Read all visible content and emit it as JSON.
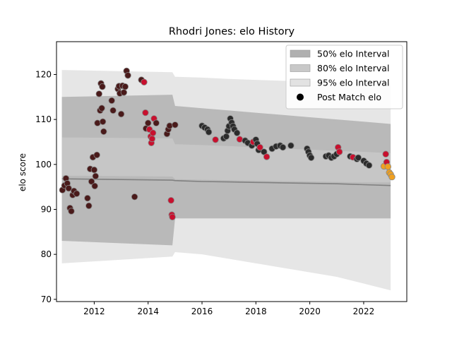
{
  "chart_data": {
    "type": "scatter",
    "title": "Rhodri Jones: elo History",
    "xlabel": "",
    "ylabel": "elo score",
    "xlim": [
      2010.6,
      2023.6
    ],
    "ylim": [
      69.5,
      127.3
    ],
    "xticks": [
      2012,
      2014,
      2016,
      2018,
      2020,
      2022
    ],
    "yticks": [
      70,
      80,
      90,
      100,
      110,
      120
    ],
    "grid": false,
    "legend_position": "top-right",
    "legend": [
      {
        "label": "50% elo Interval",
        "kind": "band",
        "color": "#b0b0b0"
      },
      {
        "label": "80% elo Interval",
        "kind": "band",
        "color": "#c8c8c8"
      },
      {
        "label": "95% elo Interval",
        "kind": "band",
        "color": "#e2e2e2"
      },
      {
        "label": "Post Match elo",
        "kind": "marker",
        "color": "#000000"
      }
    ],
    "colors": {
      "band50": "#b0b0b0",
      "band80": "#c8c8c8",
      "band95": "#e2e2e2",
      "median_line": "#808080",
      "marker_dark": "#2b2b2b",
      "marker_red": "#c8102e",
      "marker_maroon": "#4a1a1a",
      "marker_orange": "#f0a020"
    },
    "intervals": {
      "x": [
        2010.8,
        2014.9,
        2015.0,
        2016.0,
        2017.0,
        2018.0,
        2019.0,
        2020.0,
        2021.0,
        2022.0,
        2023.0
      ],
      "median": [
        96.8,
        96.5,
        96.4,
        96.2,
        96.1,
        96.0,
        95.9,
        95.8,
        95.7,
        95.5,
        95.3
      ],
      "p50_low": [
        83.0,
        82.0,
        88.0,
        88.0,
        88.0,
        88.0,
        88.0,
        88.0,
        88.0,
        88.0,
        88.0
      ],
      "p50_high": [
        115.0,
        115.5,
        113.0,
        112.5,
        112.0,
        111.5,
        111.0,
        110.5,
        110.0,
        109.5,
        109.0
      ],
      "p80_low": [
        97.5,
        97.3,
        96.7,
        96.6,
        96.5,
        96.4,
        96.3,
        96.2,
        96.1,
        96.0,
        96.0
      ],
      "p80_high": [
        106.0,
        105.8,
        104.5,
        104.3,
        104.1,
        103.8,
        103.5,
        103.3,
        103.0,
        102.8,
        102.5
      ],
      "p95_low": [
        78.0,
        79.5,
        80.5,
        80.0,
        79.0,
        78.0,
        77.0,
        76.0,
        75.0,
        73.5,
        72.0
      ],
      "p95_high": [
        121.0,
        120.5,
        119.5,
        119.3,
        119.0,
        118.8,
        118.6,
        118.5,
        118.3,
        118.2,
        118.0
      ]
    },
    "points": [
      {
        "x": 2010.82,
        "y": 94.3,
        "c": "maroon"
      },
      {
        "x": 2010.9,
        "y": 95.3,
        "c": "maroon"
      },
      {
        "x": 2010.95,
        "y": 96.9,
        "c": "maroon"
      },
      {
        "x": 2011.0,
        "y": 95.8,
        "c": "maroon"
      },
      {
        "x": 2011.05,
        "y": 94.7,
        "c": "maroon"
      },
      {
        "x": 2011.1,
        "y": 90.3,
        "c": "maroon"
      },
      {
        "x": 2011.15,
        "y": 89.6,
        "c": "maroon"
      },
      {
        "x": 2011.2,
        "y": 93.2,
        "c": "maroon"
      },
      {
        "x": 2011.25,
        "y": 94.1,
        "c": "maroon"
      },
      {
        "x": 2011.35,
        "y": 93.5,
        "c": "maroon"
      },
      {
        "x": 2011.75,
        "y": 92.5,
        "c": "maroon"
      },
      {
        "x": 2011.8,
        "y": 90.8,
        "c": "maroon"
      },
      {
        "x": 2011.85,
        "y": 99.0,
        "c": "maroon"
      },
      {
        "x": 2011.9,
        "y": 96.2,
        "c": "maroon"
      },
      {
        "x": 2011.95,
        "y": 101.6,
        "c": "maroon"
      },
      {
        "x": 2012.0,
        "y": 98.8,
        "c": "maroon"
      },
      {
        "x": 2012.02,
        "y": 95.2,
        "c": "maroon"
      },
      {
        "x": 2012.05,
        "y": 97.4,
        "c": "maroon"
      },
      {
        "x": 2012.1,
        "y": 102.1,
        "c": "maroon"
      },
      {
        "x": 2012.12,
        "y": 109.2,
        "c": "maroon"
      },
      {
        "x": 2012.18,
        "y": 115.7,
        "c": "maroon"
      },
      {
        "x": 2012.22,
        "y": 112.0,
        "c": "maroon"
      },
      {
        "x": 2012.25,
        "y": 118.0,
        "c": "maroon"
      },
      {
        "x": 2012.28,
        "y": 112.5,
        "c": "maroon"
      },
      {
        "x": 2012.3,
        "y": 117.3,
        "c": "maroon"
      },
      {
        "x": 2012.32,
        "y": 109.5,
        "c": "maroon"
      },
      {
        "x": 2012.35,
        "y": 107.3,
        "c": "maroon"
      },
      {
        "x": 2012.65,
        "y": 114.2,
        "c": "maroon"
      },
      {
        "x": 2012.7,
        "y": 112.0,
        "c": "maroon"
      },
      {
        "x": 2012.88,
        "y": 116.8,
        "c": "maroon"
      },
      {
        "x": 2012.92,
        "y": 117.4,
        "c": "maroon"
      },
      {
        "x": 2012.95,
        "y": 115.8,
        "c": "maroon"
      },
      {
        "x": 2013.0,
        "y": 111.2,
        "c": "maroon"
      },
      {
        "x": 2013.05,
        "y": 117.5,
        "c": "maroon"
      },
      {
        "x": 2013.1,
        "y": 116.0,
        "c": "maroon"
      },
      {
        "x": 2013.15,
        "y": 117.3,
        "c": "maroon"
      },
      {
        "x": 2013.2,
        "y": 120.8,
        "c": "maroon"
      },
      {
        "x": 2013.25,
        "y": 119.8,
        "c": "maroon"
      },
      {
        "x": 2013.5,
        "y": 92.8,
        "c": "maroon"
      },
      {
        "x": 2013.75,
        "y": 118.8,
        "c": "maroon"
      },
      {
        "x": 2013.85,
        "y": 118.3,
        "c": "red"
      },
      {
        "x": 2013.9,
        "y": 111.5,
        "c": "red"
      },
      {
        "x": 2013.92,
        "y": 108.0,
        "c": "maroon"
      },
      {
        "x": 2014.0,
        "y": 109.2,
        "c": "maroon"
      },
      {
        "x": 2014.05,
        "y": 107.8,
        "c": "red"
      },
      {
        "x": 2014.1,
        "y": 106.2,
        "c": "red"
      },
      {
        "x": 2014.12,
        "y": 104.8,
        "c": "red"
      },
      {
        "x": 2014.15,
        "y": 105.7,
        "c": "red"
      },
      {
        "x": 2014.18,
        "y": 107.0,
        "c": "red"
      },
      {
        "x": 2014.22,
        "y": 110.2,
        "c": "red"
      },
      {
        "x": 2014.3,
        "y": 109.2,
        "c": "maroon"
      },
      {
        "x": 2014.7,
        "y": 106.8,
        "c": "maroon"
      },
      {
        "x": 2014.75,
        "y": 107.8,
        "c": "maroon"
      },
      {
        "x": 2014.8,
        "y": 108.6,
        "c": "maroon"
      },
      {
        "x": 2014.85,
        "y": 92.0,
        "c": "red"
      },
      {
        "x": 2014.88,
        "y": 88.8,
        "c": "red"
      },
      {
        "x": 2014.9,
        "y": 88.3,
        "c": "red"
      },
      {
        "x": 2015.0,
        "y": 108.8,
        "c": "maroon"
      },
      {
        "x": 2016.0,
        "y": 108.6,
        "c": "dark"
      },
      {
        "x": 2016.1,
        "y": 108.2,
        "c": "dark"
      },
      {
        "x": 2016.2,
        "y": 107.8,
        "c": "dark"
      },
      {
        "x": 2016.25,
        "y": 107.2,
        "c": "dark"
      },
      {
        "x": 2016.5,
        "y": 105.5,
        "c": "red"
      },
      {
        "x": 2016.8,
        "y": 105.8,
        "c": "dark"
      },
      {
        "x": 2016.9,
        "y": 106.2,
        "c": "dark"
      },
      {
        "x": 2016.95,
        "y": 107.5,
        "c": "dark"
      },
      {
        "x": 2017.0,
        "y": 108.5,
        "c": "dark"
      },
      {
        "x": 2017.05,
        "y": 110.2,
        "c": "dark"
      },
      {
        "x": 2017.1,
        "y": 109.3,
        "c": "dark"
      },
      {
        "x": 2017.15,
        "y": 108.5,
        "c": "dark"
      },
      {
        "x": 2017.2,
        "y": 107.8,
        "c": "dark"
      },
      {
        "x": 2017.3,
        "y": 107.0,
        "c": "dark"
      },
      {
        "x": 2017.4,
        "y": 105.6,
        "c": "red"
      },
      {
        "x": 2017.6,
        "y": 105.3,
        "c": "dark"
      },
      {
        "x": 2017.7,
        "y": 104.8,
        "c": "dark"
      },
      {
        "x": 2017.85,
        "y": 104.2,
        "c": "dark"
      },
      {
        "x": 2017.9,
        "y": 105.0,
        "c": "red"
      },
      {
        "x": 2018.0,
        "y": 105.5,
        "c": "dark"
      },
      {
        "x": 2018.05,
        "y": 104.6,
        "c": "dark"
      },
      {
        "x": 2018.1,
        "y": 103.2,
        "c": "dark"
      },
      {
        "x": 2018.15,
        "y": 103.8,
        "c": "red"
      },
      {
        "x": 2018.3,
        "y": 102.8,
        "c": "dark"
      },
      {
        "x": 2018.4,
        "y": 101.7,
        "c": "red"
      },
      {
        "x": 2018.6,
        "y": 103.5,
        "c": "dark"
      },
      {
        "x": 2018.75,
        "y": 104.0,
        "c": "dark"
      },
      {
        "x": 2018.9,
        "y": 104.2,
        "c": "dark"
      },
      {
        "x": 2019.0,
        "y": 103.8,
        "c": "dark"
      },
      {
        "x": 2019.3,
        "y": 104.2,
        "c": "dark"
      },
      {
        "x": 2019.9,
        "y": 103.5,
        "c": "dark"
      },
      {
        "x": 2019.95,
        "y": 102.8,
        "c": "dark"
      },
      {
        "x": 2020.0,
        "y": 102.0,
        "c": "dark"
      },
      {
        "x": 2020.05,
        "y": 101.5,
        "c": "dark"
      },
      {
        "x": 2020.6,
        "y": 101.8,
        "c": "dark"
      },
      {
        "x": 2020.7,
        "y": 102.0,
        "c": "dark"
      },
      {
        "x": 2020.8,
        "y": 101.5,
        "c": "dark"
      },
      {
        "x": 2020.9,
        "y": 101.8,
        "c": "dark"
      },
      {
        "x": 2021.0,
        "y": 102.3,
        "c": "dark"
      },
      {
        "x": 2021.05,
        "y": 103.8,
        "c": "red"
      },
      {
        "x": 2021.1,
        "y": 102.8,
        "c": "red"
      },
      {
        "x": 2021.5,
        "y": 101.8,
        "c": "dark"
      },
      {
        "x": 2021.6,
        "y": 101.6,
        "c": "red"
      },
      {
        "x": 2021.75,
        "y": 101.2,
        "c": "dark"
      },
      {
        "x": 2021.8,
        "y": 101.5,
        "c": "dark"
      },
      {
        "x": 2022.0,
        "y": 100.8,
        "c": "dark"
      },
      {
        "x": 2022.1,
        "y": 100.2,
        "c": "dark"
      },
      {
        "x": 2022.2,
        "y": 99.8,
        "c": "dark"
      },
      {
        "x": 2022.75,
        "y": 99.6,
        "c": "orange"
      },
      {
        "x": 2022.82,
        "y": 102.3,
        "c": "red"
      },
      {
        "x": 2022.85,
        "y": 100.5,
        "c": "red"
      },
      {
        "x": 2022.9,
        "y": 99.5,
        "c": "orange"
      },
      {
        "x": 2022.95,
        "y": 98.2,
        "c": "orange"
      },
      {
        "x": 2023.0,
        "y": 97.8,
        "c": "orange"
      },
      {
        "x": 2023.05,
        "y": 97.2,
        "c": "orange"
      }
    ]
  }
}
